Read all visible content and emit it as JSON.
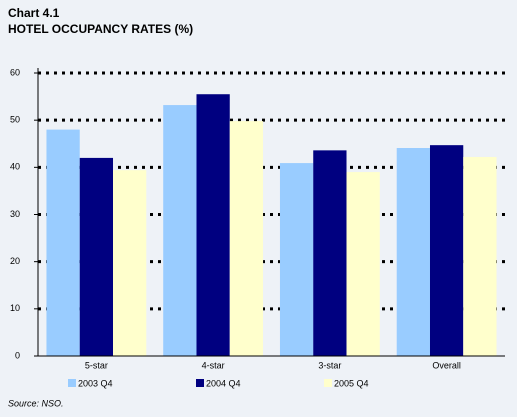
{
  "chart_data": {
    "type": "bar",
    "title": "Chart 4.1",
    "subtitle": "HOTEL OCCUPANCY RATES (%)",
    "source": "Source:  NSO.",
    "categories": [
      "5-star",
      "4-star",
      "3-star",
      "Overall"
    ],
    "series": [
      {
        "name": "2003 Q4",
        "color": "#99ccff",
        "values": [
          48,
          53.2,
          40.9,
          44.1
        ]
      },
      {
        "name": "2004 Q4",
        "color": "#000080",
        "values": [
          42,
          55.5,
          43.6,
          44.7
        ]
      },
      {
        "name": "2005 Q4",
        "color": "#ffffcc",
        "values": [
          39.4,
          49.8,
          39,
          42.2
        ]
      }
    ],
    "ylim": [
      0,
      60
    ],
    "yticks": [
      0,
      10,
      20,
      30,
      40,
      50,
      60
    ],
    "grid": true
  }
}
